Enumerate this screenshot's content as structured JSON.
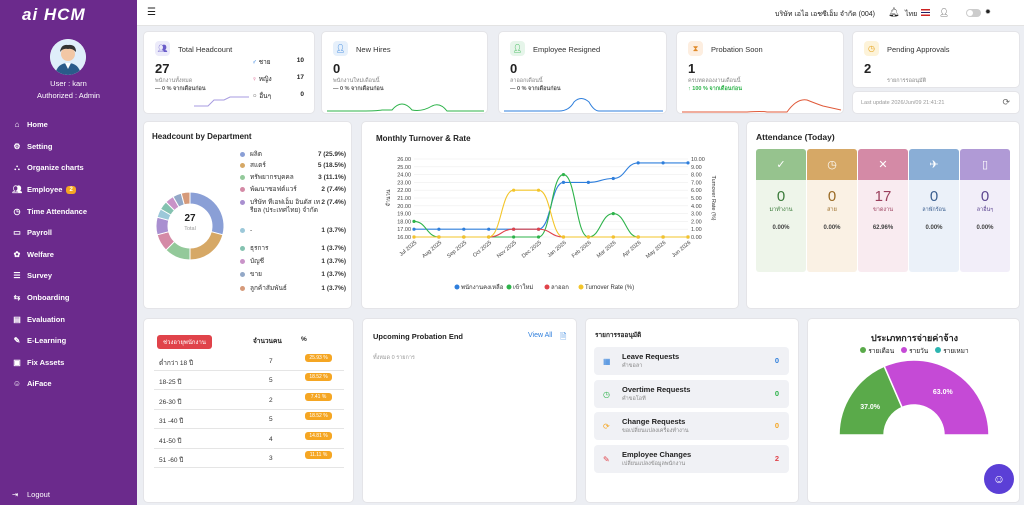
{
  "sidebar": {
    "logo": "ai HCM",
    "user": "User : karn",
    "role": "Authorized : Admin",
    "items": [
      {
        "label": "Home",
        "icon": "home-icon"
      },
      {
        "label": "Setting",
        "icon": "gear-icon"
      },
      {
        "label": "Organize charts",
        "icon": "org-chart-icon"
      },
      {
        "label": "Employee",
        "icon": "users-icon",
        "badge": "2"
      },
      {
        "label": "Time Attendance",
        "icon": "clock-icon"
      },
      {
        "label": "Payroll",
        "icon": "wallet-icon"
      },
      {
        "label": "Welfare",
        "icon": "gift-icon"
      },
      {
        "label": "Survey",
        "icon": "survey-icon"
      },
      {
        "label": "Onboarding",
        "icon": "onboarding-icon"
      },
      {
        "label": "Evaluation",
        "icon": "evaluation-icon"
      },
      {
        "label": "E-Learning",
        "icon": "elearning-icon"
      },
      {
        "label": "Fix Assets",
        "icon": "assets-icon"
      },
      {
        "label": "AiFace",
        "icon": "face-icon"
      }
    ],
    "logout": "Logout"
  },
  "topbar": {
    "company": "บริษัท เอไอ เอชซีเอ็ม จำกัด (004)",
    "language": "ไทย"
  },
  "kpis": {
    "headcount": {
      "title": "Total Headcount",
      "value": "27",
      "sub": "พนักงานทั้งหมด",
      "change": "— 0 % จากเดือนก่อน",
      "male_label": "ชาย",
      "male": "10",
      "female_label": "หญิง",
      "female": "17",
      "other_label": "อื่นๆ",
      "other": "0"
    },
    "newhires": {
      "title": "New Hires",
      "value": "0",
      "sub": "พนักงานใหม่เดือนนี้",
      "change": "— 0 % จากเดือนก่อน"
    },
    "resigned": {
      "title": "Employee Resigned",
      "value": "0",
      "sub": "ลาออกเดือนนี้",
      "change": "— 0 % จากเดือนก่อน"
    },
    "probation": {
      "title": "Probation Soon",
      "value": "1",
      "sub": "ครบทดลองงานเดือนนี้",
      "change": "↑ 100 % จากเดือนก่อน"
    },
    "approvals": {
      "title": "Pending Approvals",
      "value": "2",
      "sub": "รายการรออนุมัติ",
      "updated": "Last update 2026/Jun/09 21:41:21"
    }
  },
  "department": {
    "title": "Headcount by Department",
    "total": "27",
    "total_label": "Total",
    "items": [
      {
        "label": "ผลิต",
        "count": "7 (25.9%)",
        "value": 7,
        "color": "#8a9fd6"
      },
      {
        "label": "สแตร์",
        "count": "5 (18.5%)",
        "value": 5,
        "color": "#d6a866"
      },
      {
        "label": "ทรัพยากรบุคคล",
        "count": "3 (11.1%)",
        "value": 3,
        "color": "#93c99a"
      },
      {
        "label": "พัฒนาซอฟต์แวร์",
        "count": "2 (7.4%)",
        "value": 2,
        "color": "#d48aa6"
      },
      {
        "label": "บริษัท ทีเอฟเอ็ม อินดัส เทรียล (ประเทศไทย) จำกัด",
        "count": "2 (7.4%)",
        "value": 2,
        "color": "#a98fd0"
      },
      {
        "label": "-",
        "count": "1 (3.7%)",
        "value": 1,
        "color": "#9cc8d9"
      },
      {
        "label": "ธุรการ",
        "count": "1 (3.7%)",
        "value": 1,
        "color": "#84c2b0"
      },
      {
        "label": "บัญชี",
        "count": "1 (3.7%)",
        "value": 1,
        "color": "#c993c8"
      },
      {
        "label": "ขาย",
        "count": "1 (3.7%)",
        "value": 1,
        "color": "#93a8c7"
      },
      {
        "label": "ลูกค้าสัมพันธ์",
        "count": "1 (3.7%)",
        "value": 1,
        "color": "#d69a7a"
      }
    ]
  },
  "chart_data": {
    "type": "line",
    "title": "Monthly Turnover & Rate",
    "ylabel": "จำนวน",
    "y2label": "Turnover Rate (%)",
    "categories": [
      "Jul 2025",
      "Aug 2025",
      "Sep 2025",
      "Oct 2025",
      "Nov 2025",
      "Dec 2025",
      "Jan 2026",
      "Feb 2026",
      "Mar 2026",
      "Apr 2026",
      "May 2026",
      "Jun 2026"
    ],
    "ylim": [
      16,
      26
    ],
    "yticks": [
      "26.00",
      "25.00",
      "24.00",
      "23.00",
      "22.00",
      "21.00",
      "20.00",
      "19.00",
      "18.00",
      "17.00",
      "16.00"
    ],
    "y2lim": [
      0,
      10
    ],
    "y2ticks": [
      "10.00",
      "9.00",
      "8.00",
      "7.00",
      "6.00",
      "5.00",
      "4.00",
      "3.00",
      "2.00",
      "1.00",
      "0.00"
    ],
    "series": [
      {
        "name": "พนักงานคงเหลือ",
        "axis": "left",
        "color": "#2f7fdc",
        "values": [
          17,
          17,
          17,
          17,
          17,
          17,
          23,
          23,
          23.5,
          25.5,
          25.5,
          25.5
        ]
      },
      {
        "name": "เข้าใหม่",
        "axis": "right",
        "color": "#2db34a",
        "values": [
          2,
          0,
          0,
          0,
          0,
          0,
          8,
          0,
          3,
          0,
          0,
          0
        ]
      },
      {
        "name": "ลาออก",
        "axis": "right",
        "color": "#e0434a",
        "values": [
          0,
          0,
          0,
          0,
          1,
          1,
          0,
          0,
          0,
          0,
          0,
          0
        ]
      },
      {
        "name": "Turnover Rate (%)",
        "axis": "right",
        "color": "#f3c52a",
        "values": [
          0,
          0,
          0,
          0,
          6,
          6,
          0,
          0,
          0,
          0,
          0,
          0
        ]
      }
    ]
  },
  "attendance": {
    "title": "Attendance (Today)",
    "items": [
      {
        "icon": "check-icon",
        "glyph": "✓",
        "value": "0",
        "label": "มาทำงาน",
        "pct": "0.00%",
        "head": "#96c38e",
        "bg": "#eef5ea",
        "vc": "#3a7a3a"
      },
      {
        "icon": "clock-icon",
        "glyph": "◷",
        "value": "0",
        "label": "สาย",
        "pct": "0.00%",
        "head": "#d6a866",
        "bg": "#faf1e4",
        "vc": "#9a6b25"
      },
      {
        "icon": "close-icon",
        "glyph": "✕",
        "value": "17",
        "label": "ขาดงาน",
        "pct": "62.96%",
        "head": "#d48aa6",
        "bg": "#f9ebf0",
        "vc": "#9a3f5c"
      },
      {
        "icon": "plane-icon",
        "glyph": "✈",
        "value": "0",
        "label": "ลาพักร้อน",
        "pct": "0.00%",
        "head": "#8aaed6",
        "bg": "#ebf1f9",
        "vc": "#3b5f8f"
      },
      {
        "icon": "phone-icon",
        "glyph": "▯",
        "value": "0",
        "label": "ลาอื่นๆ",
        "pct": "0.00%",
        "head": "#b09ad6",
        "bg": "#f2eef9",
        "vc": "#5e4791"
      }
    ]
  },
  "age": {
    "title": "ช่วงอายุพนักงาน",
    "col_count": "จำนวนคน",
    "col_pct": "%",
    "rows": [
      {
        "range": "ต่ำกว่า 18 ปี",
        "count": "7",
        "pct": "25.93 %"
      },
      {
        "range": "18-25 ปี",
        "count": "5",
        "pct": "18.52 %"
      },
      {
        "range": "26-30 ปี",
        "count": "2",
        "pct": "7.41 %"
      },
      {
        "range": "31 -40 ปี",
        "count": "5",
        "pct": "18.52 %"
      },
      {
        "range": "41-50 ปี",
        "count": "4",
        "pct": "14.81 %"
      },
      {
        "range": "51 -60 ปี",
        "count": "3",
        "pct": "11.11 %"
      }
    ]
  },
  "probation_list": {
    "title": "Upcoming Probation End",
    "view_all": "View All",
    "empty": "ทั้งหมด 0 รายการ"
  },
  "approvals": {
    "title": "รายการรออนุมัติ",
    "items": [
      {
        "icon": "calendar-icon",
        "glyph": "▦",
        "color": "#2f7fdc",
        "title": "Leave Requests",
        "sub": "คำขอลา",
        "count": "0",
        "cc": "#2f7fdc"
      },
      {
        "icon": "clock-icon",
        "glyph": "◷",
        "color": "#2db34a",
        "title": "Overtime Requests",
        "sub": "คำขอโอที",
        "count": "0",
        "cc": "#2db34a"
      },
      {
        "icon": "refresh-icon",
        "glyph": "⟳",
        "color": "#f5a623",
        "title": "Change Requests",
        "sub": "ขอเปลี่ยนแปลงเครื่องทำงาน",
        "count": "0",
        "cc": "#f5a623"
      },
      {
        "icon": "user-edit-icon",
        "glyph": "✎",
        "color": "#e0434a",
        "title": "Employee Changes",
        "sub": "เปลี่ยนแปลงข้อมูลพนักงาน",
        "count": "2",
        "cc": "#e0434a"
      }
    ]
  },
  "pay_type": {
    "title": "ประเภทการจ่ายค่าจ้าง",
    "legend": [
      {
        "label": "รายเดือน",
        "color": "#5aaa4a"
      },
      {
        "label": "รายวัน",
        "color": "#c54ad6"
      },
      {
        "label": "รายเหมา",
        "color": "#2cb5b0"
      }
    ],
    "slices": [
      {
        "label": "37.0%",
        "value": 37.0,
        "color": "#5aaa4a"
      },
      {
        "label": "63.0%",
        "value": 63.0,
        "color": "#c54ad6"
      }
    ]
  }
}
